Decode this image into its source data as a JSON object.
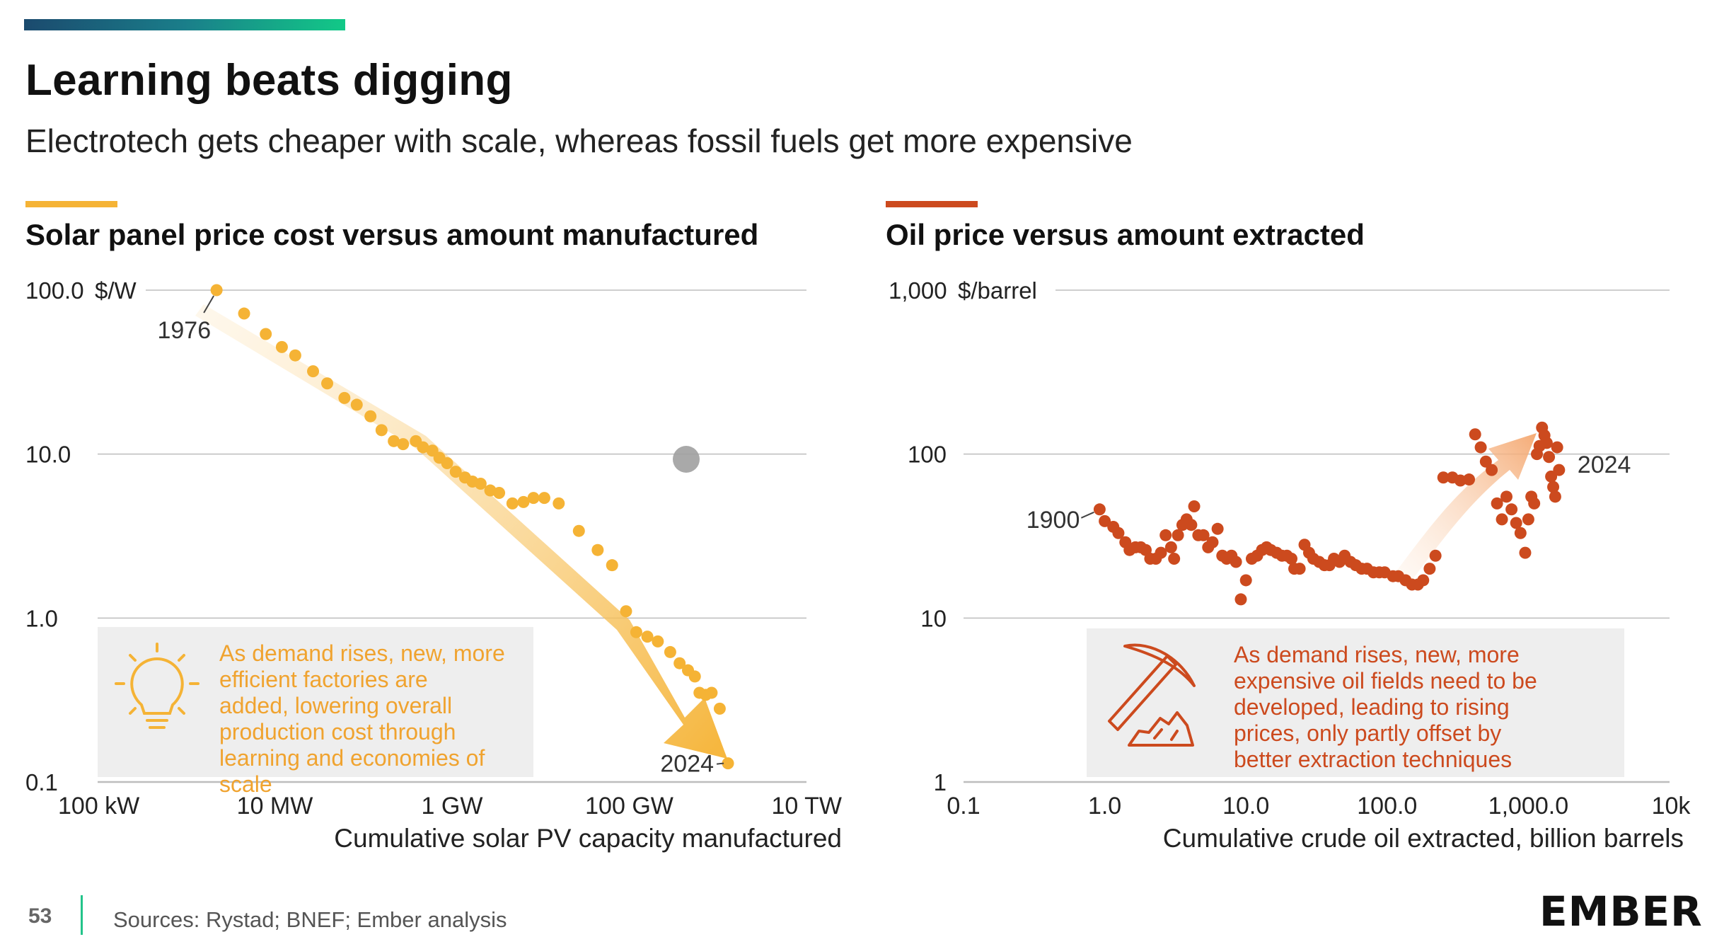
{
  "header": {
    "title": "Learning beats digging",
    "subtitle": "Electrotech gets cheaper with scale, whereas fossil fuels get more expensive"
  },
  "footer": {
    "page_number": "53",
    "sources": "Sources: Rystad; BNEF; Ember analysis",
    "logo": "EMBER"
  },
  "colors": {
    "brand_gradient": [
      "#1b4a6e",
      "#12c987"
    ],
    "solar": "#f5b335",
    "oil": "#cc4a1e",
    "annotation_bg": "#eeeeee"
  },
  "icons": {
    "solar_annotation": "lightbulb-icon",
    "oil_annotation": "pickaxe-icon"
  },
  "chart_data": [
    {
      "type": "scatter",
      "title": "Solar panel price cost versus amount manufactured",
      "xlabel": "Cumulative solar PV capacity manufactured",
      "ylabel": "$/W",
      "x_scale": "log",
      "y_scale": "log",
      "xlim_gw": [
        0.0001,
        10000
      ],
      "ylim": [
        0.1,
        100
      ],
      "x_ticks": [
        {
          "value": 0.0001,
          "label": "100 kW"
        },
        {
          "value": 0.01,
          "label": "10 MW"
        },
        {
          "value": 1,
          "label": "1 GW"
        },
        {
          "value": 100,
          "label": "100 GW"
        },
        {
          "value": 10000,
          "label": "10 TW"
        }
      ],
      "y_ticks": [
        {
          "value": 100,
          "label": "100.0"
        },
        {
          "value": 10,
          "label": "10.0"
        },
        {
          "value": 1,
          "label": "1.0"
        },
        {
          "value": 0.1,
          "label": "0.1"
        }
      ],
      "y_unit_label": "$/W",
      "points_x_gw_y_usd_per_w": [
        [
          0.0022,
          100
        ],
        [
          0.0045,
          72
        ],
        [
          0.0079,
          54
        ],
        [
          0.012,
          45
        ],
        [
          0.017,
          40
        ],
        [
          0.027,
          32
        ],
        [
          0.039,
          27
        ],
        [
          0.061,
          22
        ],
        [
          0.084,
          20
        ],
        [
          0.12,
          17
        ],
        [
          0.16,
          14
        ],
        [
          0.22,
          12
        ],
        [
          0.28,
          11.5
        ],
        [
          0.39,
          12
        ],
        [
          0.47,
          11
        ],
        [
          0.6,
          10.5
        ],
        [
          0.72,
          9.5
        ],
        [
          0.88,
          8.8
        ],
        [
          1.1,
          7.8
        ],
        [
          1.4,
          7.2
        ],
        [
          1.7,
          6.8
        ],
        [
          2.1,
          6.6
        ],
        [
          2.7,
          6.0
        ],
        [
          3.4,
          5.8
        ],
        [
          4.8,
          5.0
        ],
        [
          6.4,
          5.1
        ],
        [
          8.3,
          5.4
        ],
        [
          11,
          5.4
        ],
        [
          16,
          5.0
        ],
        [
          27,
          3.4
        ],
        [
          44,
          2.6
        ],
        [
          64,
          2.1
        ],
        [
          92,
          1.1
        ],
        [
          120,
          0.82
        ],
        [
          160,
          0.77
        ],
        [
          210,
          0.72
        ],
        [
          290,
          0.62
        ],
        [
          370,
          0.53
        ],
        [
          460,
          0.48
        ],
        [
          550,
          0.44
        ],
        [
          620,
          0.35
        ],
        [
          730,
          0.34
        ],
        [
          850,
          0.35
        ],
        [
          1050,
          0.28
        ],
        [
          1300,
          0.13
        ]
      ],
      "annotations": [
        {
          "text": "1976",
          "x": 0.0022,
          "y": 100
        },
        {
          "text": "2024",
          "x": 1300,
          "y": 0.13
        }
      ],
      "callout": "As demand rises, new, more efficient factories are added, lowering overall production cost through learning and economies of scale"
    },
    {
      "type": "scatter",
      "title": "Oil price versus amount extracted",
      "xlabel": "Cumulative crude oil extracted, billion barrels",
      "ylabel": "$/barrel",
      "x_scale": "log",
      "y_scale": "log",
      "xlim": [
        0.1,
        10000
      ],
      "ylim": [
        1,
        1000
      ],
      "x_ticks": [
        {
          "value": 0.1,
          "label": "0.1"
        },
        {
          "value": 1,
          "label": "1.0"
        },
        {
          "value": 10,
          "label": "10.0"
        },
        {
          "value": 100,
          "label": "100.0"
        },
        {
          "value": 1000,
          "label": "1,000.0"
        },
        {
          "value": 10000,
          "label": "10k"
        }
      ],
      "y_ticks": [
        {
          "value": 1000,
          "label": "1,000"
        },
        {
          "value": 100,
          "label": "100"
        },
        {
          "value": 10,
          "label": "10"
        },
        {
          "value": 1,
          "label": "1"
        }
      ],
      "y_unit_label": "$/barrel",
      "points_x_bbl_y_usd": [
        [
          0.92,
          46
        ],
        [
          1.0,
          39
        ],
        [
          1.15,
          36
        ],
        [
          1.25,
          33
        ],
        [
          1.4,
          29
        ],
        [
          1.5,
          26
        ],
        [
          1.65,
          27
        ],
        [
          1.8,
          27
        ],
        [
          1.95,
          26
        ],
        [
          2.1,
          23
        ],
        [
          2.3,
          23
        ],
        [
          2.5,
          25
        ],
        [
          2.7,
          32
        ],
        [
          2.95,
          27
        ],
        [
          3.1,
          23
        ],
        [
          3.3,
          32
        ],
        [
          3.55,
          37
        ],
        [
          3.8,
          40
        ],
        [
          4.1,
          37
        ],
        [
          4.3,
          48
        ],
        [
          4.6,
          32
        ],
        [
          5.0,
          32
        ],
        [
          5.4,
          27
        ],
        [
          5.8,
          29
        ],
        [
          6.3,
          35
        ],
        [
          6.8,
          24
        ],
        [
          7.3,
          23
        ],
        [
          7.9,
          24
        ],
        [
          8.5,
          22
        ],
        [
          9.2,
          13
        ],
        [
          10,
          17
        ],
        [
          11,
          23
        ],
        [
          12,
          24
        ],
        [
          13,
          26
        ],
        [
          14,
          27
        ],
        [
          15,
          26
        ],
        [
          16.5,
          25
        ],
        [
          18,
          24
        ],
        [
          19.5,
          24
        ],
        [
          21,
          23
        ],
        [
          22,
          20
        ],
        [
          24,
          20
        ],
        [
          26,
          28
        ],
        [
          28,
          25
        ],
        [
          30,
          23
        ],
        [
          33,
          22
        ],
        [
          36,
          21
        ],
        [
          39,
          21
        ],
        [
          42,
          23
        ],
        [
          46,
          22
        ],
        [
          50,
          24
        ],
        [
          55,
          22
        ],
        [
          60,
          21
        ],
        [
          66,
          20
        ],
        [
          72,
          20
        ],
        [
          80,
          19
        ],
        [
          88,
          19
        ],
        [
          96,
          19
        ],
        [
          110,
          18
        ],
        [
          120,
          18
        ],
        [
          135,
          17
        ],
        [
          150,
          16
        ],
        [
          165,
          16
        ],
        [
          180,
          17
        ],
        [
          200,
          20
        ],
        [
          220,
          24
        ],
        [
          250,
          72
        ],
        [
          290,
          72
        ],
        [
          330,
          69
        ],
        [
          380,
          70
        ],
        [
          420,
          132
        ],
        [
          460,
          110
        ],
        [
          500,
          90
        ],
        [
          550,
          80
        ],
        [
          600,
          50
        ],
        [
          650,
          40
        ],
        [
          700,
          55
        ],
        [
          760,
          46
        ],
        [
          820,
          38
        ],
        [
          880,
          33
        ],
        [
          950,
          25
        ],
        [
          1000,
          40
        ],
        [
          1050,
          55
        ],
        [
          1100,
          50
        ],
        [
          1150,
          100
        ],
        [
          1200,
          112
        ],
        [
          1250,
          145
        ],
        [
          1300,
          130
        ],
        [
          1350,
          117
        ],
        [
          1400,
          96
        ],
        [
          1450,
          73
        ],
        [
          1500,
          63
        ],
        [
          1550,
          55
        ],
        [
          1600,
          110
        ],
        [
          1650,
          80
        ]
      ],
      "annotations": [
        {
          "text": "1900",
          "x": 0.92,
          "y": 46
        },
        {
          "text": "2024",
          "x": 1650,
          "y": 80
        }
      ],
      "callout": "As demand rises, new, more expensive oil fields need to be developed, leading to rising prices, only partly offset by better extraction techniques"
    }
  ]
}
